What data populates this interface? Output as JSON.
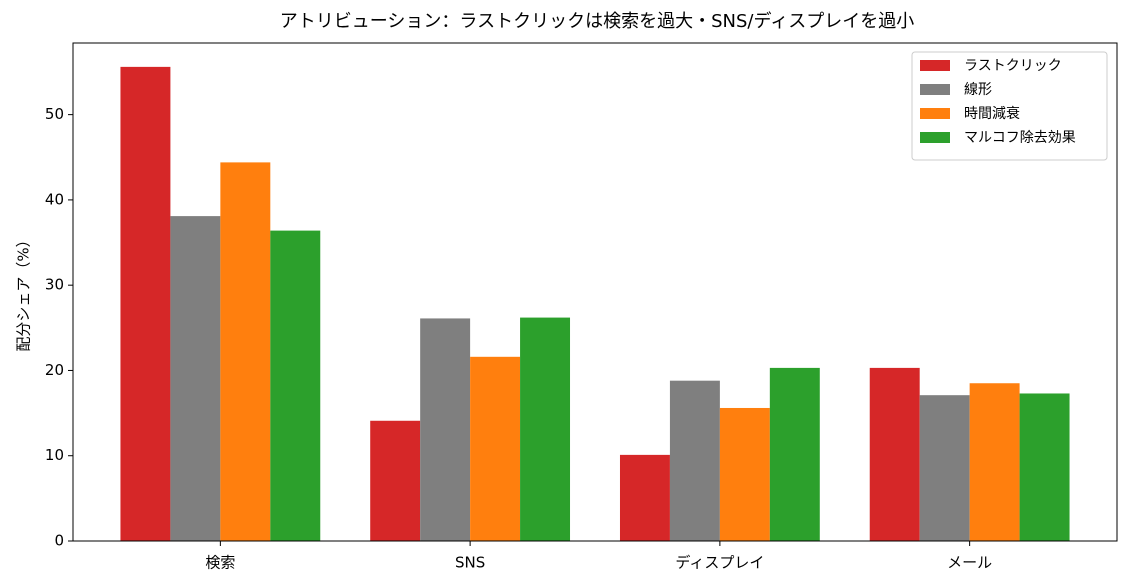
{
  "chart_data": {
    "type": "bar",
    "title": "アトリビューション：ラストクリックは検索を過大・SNS/ディスプレイを過小",
    "ylabel": "配分シェア（%）",
    "categories": [
      "検索",
      "SNS",
      "ディスプレイ",
      "メール"
    ],
    "series": [
      {
        "name": "ラストクリック",
        "color": "#d62728",
        "values": [
          55.6,
          14.1,
          10.1,
          20.3
        ]
      },
      {
        "name": "線形",
        "color": "#7f7f7f",
        "values": [
          38.1,
          26.1,
          18.8,
          17.1
        ]
      },
      {
        "name": "時間減衰",
        "color": "#ff7f0e",
        "values": [
          44.4,
          21.6,
          15.6,
          18.5
        ]
      },
      {
        "name": "マルコフ除去効果",
        "color": "#2ca02c",
        "values": [
          36.4,
          26.2,
          20.3,
          17.3
        ]
      }
    ],
    "ylim": [
      0,
      58.4
    ],
    "yticks": [
      0,
      10,
      20,
      30,
      40,
      50
    ],
    "legend": "upper right"
  }
}
